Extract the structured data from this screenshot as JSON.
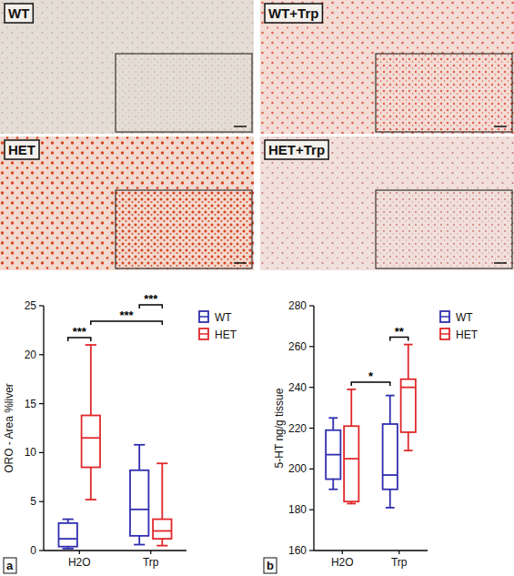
{
  "images": [
    {
      "label": "WT"
    },
    {
      "label": "WT+Trp"
    },
    {
      "label": "HET"
    },
    {
      "label": "HET+Trp"
    }
  ],
  "chart_data": [
    {
      "type": "box",
      "panel_label": "a",
      "y_label": "ORO - Area %liver",
      "categories": [
        "H2O",
        "Trp"
      ],
      "ylim": [
        0,
        25
      ],
      "yticks": [
        0,
        5,
        10,
        15,
        20,
        25
      ],
      "legend": "right",
      "series": [
        {
          "name": "WT",
          "color": "#2f2fae",
          "boxes": [
            {
              "min": 0.2,
              "q1": 0.4,
              "median": 1.2,
              "q3": 2.8,
              "max": 3.2
            },
            {
              "min": 0.6,
              "q1": 1.5,
              "median": 4.2,
              "q3": 8.2,
              "max": 10.8
            }
          ]
        },
        {
          "name": "HET",
          "color": "#e0282a",
          "boxes": [
            {
              "min": 5.2,
              "q1": 8.5,
              "median": 11.5,
              "q3": 13.8,
              "max": 21
            },
            {
              "min": 0.5,
              "q1": 1.2,
              "median": 2.0,
              "q3": 3.2,
              "max": 8.9
            }
          ]
        }
      ],
      "annotations": [
        {
          "text": "***",
          "between": [
            [
              0,
              0
            ],
            [
              0,
              1
            ]
          ]
        },
        {
          "text": "***",
          "between": [
            [
              0,
              1
            ],
            [
              1,
              1
            ]
          ]
        },
        {
          "text": "***",
          "between": [
            [
              1,
              0
            ],
            [
              1,
              1
            ]
          ]
        }
      ]
    },
    {
      "type": "box",
      "panel_label": "b",
      "y_label": "5-HT ng/g tissue",
      "categories": [
        "H2O",
        "Trp"
      ],
      "ylim": [
        160,
        280
      ],
      "yticks": [
        160,
        180,
        200,
        220,
        240,
        260,
        280
      ],
      "legend": "right",
      "series": [
        {
          "name": "WT",
          "color": "#2f2fae",
          "boxes": [
            {
              "min": 190,
              "q1": 195,
              "median": 207,
              "q3": 219,
              "max": 225
            },
            {
              "min": 181,
              "q1": 190,
              "median": 197,
              "q3": 222,
              "max": 236
            }
          ]
        },
        {
          "name": "HET",
          "color": "#e0282a",
          "boxes": [
            {
              "min": 183,
              "q1": 184,
              "median": 205,
              "q3": 221,
              "max": 239
            },
            {
              "min": 209,
              "q1": 218,
              "median": 240,
              "q3": 244,
              "max": 261
            }
          ]
        }
      ],
      "annotations": [
        {
          "text": "*",
          "between": [
            [
              0,
              1
            ],
            [
              1,
              0
            ]
          ]
        },
        {
          "text": "**",
          "between": [
            [
              1,
              0
            ],
            [
              1,
              1
            ]
          ]
        }
      ]
    }
  ]
}
